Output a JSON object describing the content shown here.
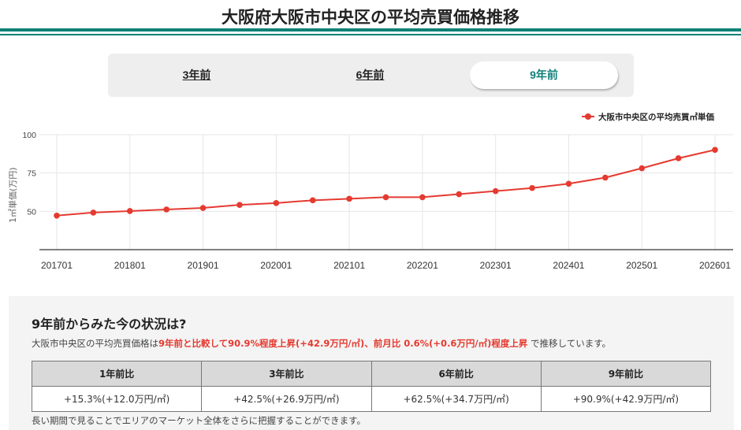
{
  "header": {
    "title": "大阪府大阪市中央区の平均売買価格推移",
    "accent_color": "#0e8078"
  },
  "tabs": [
    {
      "label": "3年前",
      "active": false
    },
    {
      "label": "6年前",
      "active": false
    },
    {
      "label": "9年前",
      "active": true
    }
  ],
  "legend": {
    "label": "大阪市中央区の平均売買㎡単価",
    "color": "#e53a30"
  },
  "chart_data": {
    "type": "line",
    "title": "",
    "xlabel": "",
    "ylabel": "1㎡単価(万円)",
    "ylim": [
      25,
      100
    ],
    "yticks": [
      50,
      75,
      100
    ],
    "grid": true,
    "legend_position": "top-right",
    "x_tick_labels": [
      "201701",
      "201801",
      "201901",
      "202001",
      "202101",
      "202201",
      "202301",
      "202401",
      "202501",
      "202601"
    ],
    "x": [
      "201701",
      "201707",
      "201801",
      "201807",
      "201901",
      "201907",
      "202001",
      "202007",
      "202101",
      "202107",
      "202201",
      "202207",
      "202301",
      "202307",
      "202401",
      "202407",
      "202501",
      "202507",
      "202601"
    ],
    "series": [
      {
        "name": "大阪市中央区の平均売買㎡単価",
        "color": "#e53a30",
        "values": [
          47.2,
          49.2,
          50.2,
          51.2,
          52.2,
          54.2,
          55.4,
          57.2,
          58.2,
          59.2,
          59.2,
          61.2,
          63.2,
          65.2,
          68.0,
          72.0,
          78.1,
          84.6,
          90.1
        ]
      }
    ]
  },
  "summary": {
    "title": "9年前からみた今の状況は?",
    "text_prefix": "大阪市中央区の平均売買価格は",
    "text_highlight": "9年前と比較して90.9%程度上昇(+42.9万円/㎡)、前月比 0.6%(+0.6万円/㎡)程度上昇",
    "text_suffix": " で推移しています。",
    "table": {
      "headers": [
        "1年前比",
        "3年前比",
        "6年前比",
        "9年前比"
      ],
      "values": [
        "+15.3%(+12.0万円/㎡)",
        "+42.5%(+26.9万円/㎡)",
        "+62.5%(+34.7万円/㎡)",
        "+90.9%(+42.9万円/㎡)"
      ]
    },
    "footnote": "長い期間で見ることでエリアのマーケット全体をさらに把握することができます。"
  }
}
